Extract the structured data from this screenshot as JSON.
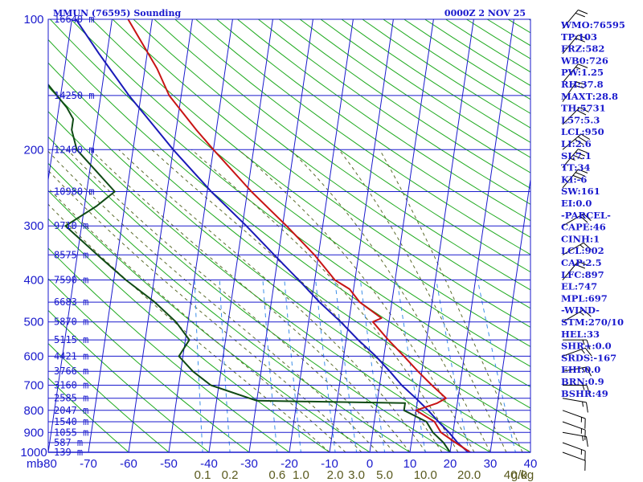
{
  "header": {
    "station": "MMUN (76595) Sounding",
    "time": "0000Z  2 NOV 25"
  },
  "chart_data": {
    "type": "skew-t",
    "title": "MMUN (76595) Sounding",
    "time": "0000Z  2 NOV 25",
    "pressure_unit": "mb",
    "mixing_ratio_unit": "g/kg",
    "pressure_levels": [
      100,
      200,
      300,
      400,
      500,
      600,
      700,
      800,
      900,
      1000
    ],
    "temperature_ticks": [
      -80,
      -70,
      -60,
      -50,
      -40,
      -30,
      -20,
      -10,
      0,
      10,
      20,
      30,
      40
    ],
    "mixing_ratio_labels": [
      "0.1",
      "0.2",
      "0.6",
      "1.0",
      "2.0",
      "3.0",
      "5.0",
      "10.0",
      "20.0",
      "40.0"
    ],
    "height_labels": [
      {
        "p": 100,
        "label": "16640 m"
      },
      {
        "p": 150,
        "label": "14250 m"
      },
      {
        "p": 200,
        "label": "12460 m"
      },
      {
        "p": 250,
        "label": "10980 m"
      },
      {
        "p": 300,
        "label": "9710 m"
      },
      {
        "p": 350,
        "label": "8575 m"
      },
      {
        "p": 400,
        "label": "7590 m"
      },
      {
        "p": 450,
        "label": "6683 m"
      },
      {
        "p": 500,
        "label": "5870 m"
      },
      {
        "p": 550,
        "label": "5115 m"
      },
      {
        "p": 600,
        "label": "4421 m"
      },
      {
        "p": 650,
        "label": "3766 m"
      },
      {
        "p": 700,
        "label": "3160 m"
      },
      {
        "p": 750,
        "label": "2585 m"
      },
      {
        "p": 800,
        "label": "2047 m"
      },
      {
        "p": 850,
        "label": "1540 m"
      },
      {
        "p": 900,
        "label": "1055 m"
      },
      {
        "p": 950,
        "label": "587 m"
      },
      {
        "p": 1000,
        "label": "139 m"
      }
    ],
    "temperature_profile": [
      [
        1010,
        26.5
      ],
      [
        1000,
        25
      ],
      [
        950,
        21
      ],
      [
        900,
        17
      ],
      [
        850,
        15
      ],
      [
        800,
        10
      ],
      [
        770,
        15
      ],
      [
        750,
        17
      ],
      [
        700,
        13
      ],
      [
        650,
        9
      ],
      [
        600,
        5
      ],
      [
        550,
        0.5
      ],
      [
        500,
        -4
      ],
      [
        490,
        -2
      ],
      [
        450,
        -8
      ],
      [
        420,
        -11
      ],
      [
        400,
        -15
      ],
      [
        350,
        -21
      ],
      [
        300,
        -29
      ],
      [
        250,
        -39
      ],
      [
        200,
        -50
      ],
      [
        180,
        -55
      ],
      [
        150,
        -63
      ],
      [
        130,
        -67
      ],
      [
        100,
        -76
      ]
    ],
    "dewpoint_profile": [
      [
        1010,
        22
      ],
      [
        1000,
        20
      ],
      [
        950,
        18
      ],
      [
        900,
        15
      ],
      [
        850,
        13
      ],
      [
        800,
        7
      ],
      [
        770,
        7
      ],
      [
        760,
        -30
      ],
      [
        700,
        -42
      ],
      [
        650,
        -47
      ],
      [
        600,
        -51
      ],
      [
        550,
        -49
      ],
      [
        500,
        -53
      ],
      [
        450,
        -59
      ],
      [
        400,
        -67
      ],
      [
        350,
        -75
      ],
      [
        300,
        -84
      ],
      [
        270,
        -77
      ],
      [
        250,
        -73
      ],
      [
        200,
        -84
      ],
      [
        180,
        -86
      ],
      [
        170,
        -86
      ],
      [
        160,
        -88
      ],
      [
        140,
        -94
      ]
    ],
    "parcel_profile": [
      [
        1010,
        26
      ],
      [
        1000,
        24.5
      ],
      [
        950,
        21.5
      ],
      [
        900,
        19
      ],
      [
        850,
        16
      ],
      [
        800,
        13
      ],
      [
        750,
        9.5
      ],
      [
        700,
        5.5
      ],
      [
        650,
        2
      ],
      [
        600,
        -2
      ],
      [
        550,
        -7
      ],
      [
        500,
        -12
      ],
      [
        450,
        -18
      ],
      [
        400,
        -24
      ],
      [
        350,
        -31
      ],
      [
        300,
        -39
      ],
      [
        250,
        -49
      ],
      [
        200,
        -60
      ],
      [
        150,
        -73
      ],
      [
        120,
        -82
      ],
      [
        100,
        -89
      ]
    ],
    "wind_barbs": [
      {
        "p": 105,
        "dir": 40,
        "spd": 20
      },
      {
        "p": 120,
        "dir": 40,
        "spd": 20
      },
      {
        "p": 140,
        "dir": 40,
        "spd": 15
      },
      {
        "p": 155,
        "dir": 35,
        "spd": 20
      },
      {
        "p": 175,
        "dir": 45,
        "spd": 20
      },
      {
        "p": 200,
        "dir": 50,
        "spd": 30
      },
      {
        "p": 220,
        "dir": 40,
        "spd": 35
      },
      {
        "p": 245,
        "dir": 40,
        "spd": 30
      },
      {
        "p": 300,
        "dir": 60,
        "spd": 20
      },
      {
        "p": 350,
        "dir": 60,
        "spd": 15
      },
      {
        "p": 400,
        "dir": 40,
        "spd": 20
      },
      {
        "p": 500,
        "dir": 60,
        "spd": 15
      },
      {
        "p": 550,
        "dir": 90,
        "spd": 15
      },
      {
        "p": 600,
        "dir": 70,
        "spd": 15
      },
      {
        "p": 650,
        "dir": 80,
        "spd": 15
      },
      {
        "p": 700,
        "dir": 90,
        "spd": 15
      },
      {
        "p": 750,
        "dir": 100,
        "spd": 15
      },
      {
        "p": 800,
        "dir": 110,
        "spd": 15
      },
      {
        "p": 850,
        "dir": 110,
        "spd": 15
      },
      {
        "p": 900,
        "dir": 100,
        "spd": 15
      },
      {
        "p": 950,
        "dir": 110,
        "spd": 15
      },
      {
        "p": 1000,
        "dir": 110,
        "spd": 10
      }
    ],
    "colors": {
      "isobar": "#1a1acd",
      "isotherm": "#1a1acd",
      "dry_adiabat": "#1faa1f",
      "moist_adiabat": "#5b6b2b",
      "mixing_ratio": "#3a8ee8",
      "temperature": "#c81414",
      "dewpoint": "#0f4a14",
      "parcel": "#1a1ab8"
    }
  },
  "indices": [
    "WMO:76595",
    "TP:103",
    "FRZ:582",
    "WB0:726",
    "PW:1.25",
    "RH:37.8",
    "MAXT:28.8",
    "TH:5731",
    "L57:5.3",
    "LCL:950",
    "LI:2.6",
    "SI:7.1",
    "TT:34",
    "KI:-6",
    "SW:161",
    "EI:0.0",
    "-PARCEL-",
    "CAPE:46",
    "CINH:1",
    "LCL:902",
    "CAP:2.5",
    "LFC:897",
    "EL:747",
    "MPL:697",
    "-WIND-",
    "STM:270/10",
    "HEL:33",
    "SHR+:0.0",
    "SRDS:-167",
    "EHI:0.0",
    "BRN:0.9",
    "BSHR:49"
  ]
}
